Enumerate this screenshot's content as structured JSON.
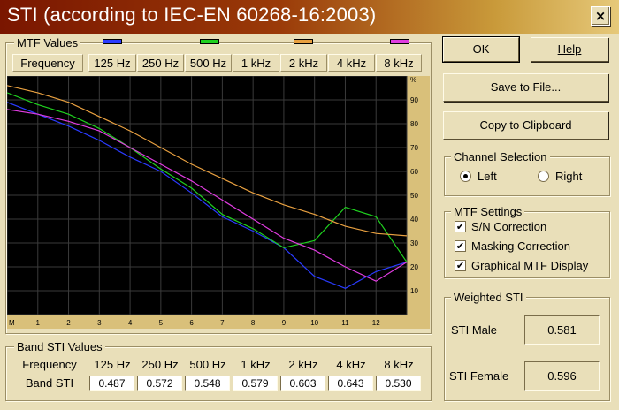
{
  "window": {
    "title": "STI (according to IEC-EN 60268-16:2003)",
    "close_label": "×"
  },
  "mtf_group": {
    "title": "MTF Values",
    "header_label": "Frequency",
    "bands": [
      "125 Hz",
      "250 Hz",
      "500 Hz",
      "1 kHz",
      "2 kHz",
      "4 kHz",
      "8 kHz"
    ],
    "band_colors": [
      "#2a3bff",
      "#2a3bff",
      "#1fd01f",
      "#1fd01f",
      "#e8a040",
      "#e8a040",
      "#e03ce0"
    ]
  },
  "chart_data": {
    "type": "line",
    "x_tick_labels": [
      "M",
      "1",
      "2",
      "3",
      "4",
      "5",
      "6",
      "7",
      "8",
      "9",
      "10",
      "11",
      "12"
    ],
    "y_tick_labels": [
      "%",
      "90",
      "80",
      "70",
      "60",
      "50",
      "40",
      "30",
      "20",
      "10"
    ],
    "xlim": [
      0,
      13
    ],
    "ylim": [
      0,
      100
    ],
    "grid": true,
    "background": "#000000",
    "series": [
      {
        "color": "#2a3bff",
        "x": [
          0,
          1,
          2,
          3,
          4,
          5,
          6,
          7,
          8,
          9,
          10,
          11,
          12,
          13
        ],
        "values": [
          89,
          84,
          79,
          73,
          66,
          60,
          51,
          41,
          35,
          28,
          16,
          11,
          18,
          22
        ]
      },
      {
        "color": "#1fd01f",
        "x": [
          0,
          1,
          2,
          3,
          4,
          5,
          6,
          7,
          8,
          9,
          10,
          11,
          12,
          13
        ],
        "values": [
          93,
          88,
          84,
          78,
          70,
          61,
          53,
          42,
          36,
          28,
          31,
          45,
          41,
          22
        ]
      },
      {
        "color": "#e8a040",
        "x": [
          0,
          1,
          2,
          3,
          4,
          5,
          6,
          7,
          8,
          9,
          10,
          11,
          12,
          13
        ],
        "values": [
          96,
          93,
          89,
          83,
          77,
          70,
          63,
          57,
          51,
          46,
          42,
          37,
          34,
          33
        ]
      },
      {
        "color": "#e03ce0",
        "x": [
          0,
          1,
          2,
          3,
          4,
          5,
          6,
          7,
          8,
          9,
          10,
          11,
          12,
          13
        ],
        "values": [
          86,
          84,
          81,
          77,
          70,
          63,
          56,
          48,
          40,
          32,
          27,
          20,
          14,
          22
        ]
      }
    ]
  },
  "band_sti_group": {
    "title": "Band STI Values",
    "header_label": "Frequency",
    "row_label": "Band STI",
    "bands": [
      "125 Hz",
      "250 Hz",
      "500 Hz",
      "1 kHz",
      "2 kHz",
      "4 kHz",
      "8 kHz"
    ],
    "values": [
      "0.487",
      "0.572",
      "0.548",
      "0.579",
      "0.603",
      "0.643",
      "0.530"
    ]
  },
  "buttons": {
    "ok": "OK",
    "help": "Help",
    "save": "Save to File...",
    "copy": "Copy to Clipboard"
  },
  "channel": {
    "title": "Channel Selection",
    "left": "Left",
    "right": "Right",
    "selected": "Left"
  },
  "mtf_settings": {
    "title": "MTF Settings",
    "options": [
      {
        "label": "S/N Correction",
        "checked": true
      },
      {
        "label": "Masking Correction",
        "checked": true
      },
      {
        "label": "Graphical MTF Display",
        "checked": true
      }
    ]
  },
  "weighted": {
    "title": "Weighted STI",
    "male_label": "STI Male",
    "male_value": "0.581",
    "female_label": "STI Female",
    "female_value": "0.596"
  }
}
